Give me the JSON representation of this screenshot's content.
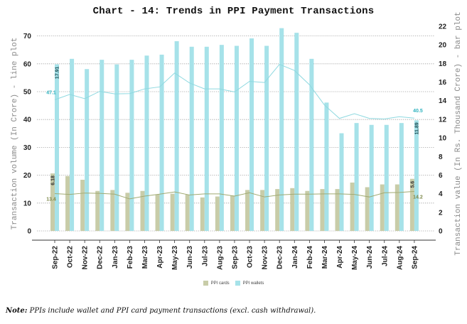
{
  "chart_data": {
    "type": "bar+line",
    "title": "Chart - 14: Trends in PPI Payment Transactions",
    "ylabel_left": "Transaction volume (In Crore) - line plot",
    "ylabel_right": "Transaction value (In Rs. Thousand Crore) - bar plot",
    "ylim_left": [
      0,
      70
    ],
    "ylim_right": [
      0,
      22
    ],
    "yticks_left": [
      0,
      10,
      20,
      30,
      40,
      50,
      60,
      70
    ],
    "yticks_right": [
      0,
      2,
      4,
      6,
      8,
      10,
      12,
      14,
      16,
      18,
      20,
      22
    ],
    "grid": true,
    "legend_position": "bottom",
    "categories": [
      "Sep-22",
      "Oct-22",
      "Nov-22",
      "Dec-22",
      "Jan-23",
      "Feb-23",
      "Mar-23",
      "Apr-23",
      "May-23",
      "Jun-23",
      "Jul-23",
      "Aug-23",
      "Sep-23",
      "Oct-23",
      "Nov-23",
      "Dec-23",
      "Jan-24",
      "Feb-24",
      "Mar-24",
      "Apr-24",
      "May-24",
      "Jun-24",
      "Jul-24",
      "Aug-24",
      "Sep-24"
    ],
    "bar_series": [
      {
        "name": "PPI cards",
        "axis": "right",
        "color": "#c8cca8",
        "values": [
          6.18,
          5.9,
          5.5,
          4.3,
          4.4,
          4.1,
          4.3,
          3.9,
          4.0,
          3.9,
          3.6,
          3.7,
          3.8,
          4.4,
          4.4,
          4.5,
          4.6,
          4.3,
          4.5,
          4.5,
          5.2,
          4.7,
          5.0,
          5.0,
          5.6
        ]
      },
      {
        "name": "PPI wallets",
        "axis": "right",
        "color": "#a6e2e9",
        "values": [
          17.91,
          18.5,
          17.4,
          18.4,
          17.9,
          18.4,
          18.85,
          18.95,
          20.4,
          19.8,
          19.8,
          20.0,
          19.9,
          20.7,
          19.9,
          21.8,
          21.3,
          18.5,
          13.8,
          10.5,
          11.6,
          11.4,
          11.4,
          11.6,
          11.89
        ]
      }
    ],
    "line_series": [
      {
        "name": "PPI cards volume",
        "axis": "left",
        "color": "#a0aa72",
        "values": [
          13.4,
          13.1,
          13.6,
          13.5,
          13.2,
          11.5,
          12.5,
          13.2,
          14.0,
          12.9,
          13.3,
          13.3,
          12.5,
          13.7,
          12.2,
          12.9,
          13.2,
          13.2,
          13.3,
          13.3,
          13.1,
          12.2,
          13.7,
          13.8,
          14.2
        ]
      },
      {
        "name": "PPI wallets volume",
        "axis": "left",
        "color": "#8fd9e0",
        "values": [
          47.1,
          49.0,
          47.5,
          50.1,
          49.2,
          49.3,
          51.0,
          51.7,
          56.7,
          53.1,
          51.0,
          51.0,
          49.9,
          53.7,
          53.3,
          59.8,
          57.6,
          52.5,
          45.2,
          40.4,
          42.1,
          40.4,
          40.2,
          41.0,
          40.5
        ]
      }
    ],
    "data_labels": [
      {
        "series": "PPI wallets",
        "category": "Sep-22",
        "text": "17.91",
        "color": "#1f4f55"
      },
      {
        "series": "PPI wallets",
        "category": "Sep-24",
        "text": "11.89",
        "color": "#1f4f55"
      },
      {
        "series": "PPI cards",
        "category": "Sep-22",
        "text": "6.18",
        "color": "#333333"
      },
      {
        "series": "PPI cards",
        "category": "Sep-24",
        "text": "5.6",
        "color": "#333333"
      },
      {
        "series": "PPI wallets volume",
        "category": "Sep-22",
        "text": "47.1",
        "color": "#2fb3bf"
      },
      {
        "series": "PPI wallets volume",
        "category": "Sep-24",
        "text": "40.5",
        "color": "#2fb3bf"
      },
      {
        "series": "PPI cards volume",
        "category": "Sep-22",
        "text": "13.4",
        "color": "#7f8a4c"
      },
      {
        "series": "PPI cards volume",
        "category": "Sep-24",
        "text": "14.2",
        "color": "#7f8a4c"
      }
    ],
    "legend": [
      "PPI cards",
      "PPI wallets"
    ]
  },
  "note_label": "Note:",
  "note_text": " PPIs include wallet and PPI card payment transactions (excl. cash withdrawal)."
}
